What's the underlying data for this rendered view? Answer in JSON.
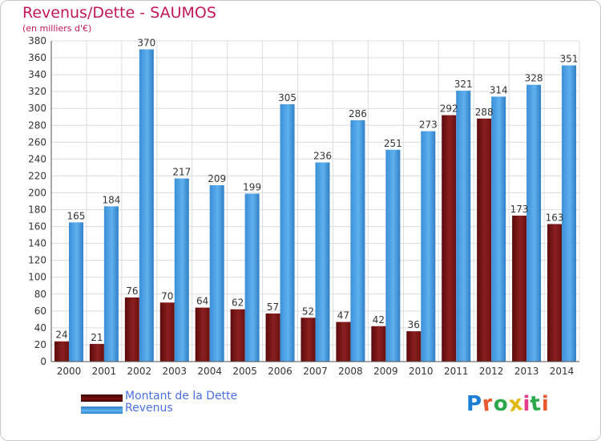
{
  "chart_data": {
    "type": "bar",
    "title": "Revenus/Dette - SAUMOS",
    "subtitle": "(en milliers d'€)",
    "categories": [
      "2000",
      "2001",
      "2002",
      "2003",
      "2004",
      "2005",
      "2006",
      "2007",
      "2008",
      "2009",
      "2010",
      "2011",
      "2012",
      "2013",
      "2014"
    ],
    "series": [
      {
        "name": "Montant de la Dette",
        "color": "#7a1212",
        "values": [
          24,
          21,
          76,
          70,
          64,
          62,
          57,
          52,
          47,
          42,
          36,
          292,
          288,
          173,
          163
        ]
      },
      {
        "name": "Revenus",
        "color": "#4a9fe0",
        "values": [
          165,
          184,
          370,
          217,
          209,
          199,
          305,
          236,
          286,
          251,
          273,
          321,
          314,
          328,
          351
        ]
      }
    ],
    "ylim": [
      0,
      380
    ],
    "yticks": [
      0,
      20,
      40,
      60,
      80,
      100,
      120,
      140,
      160,
      180,
      200,
      220,
      240,
      260,
      280,
      300,
      320,
      340,
      360,
      380
    ],
    "grid": true,
    "legend_position": "bottom-left"
  },
  "logo": {
    "text": "Proxiti",
    "letter_colors": [
      "#1a7fd4",
      "#e65a2b",
      "#2aa84a",
      "#e0b800",
      "#e63b8a",
      "#2aa84a",
      "#e65a2b"
    ]
  }
}
